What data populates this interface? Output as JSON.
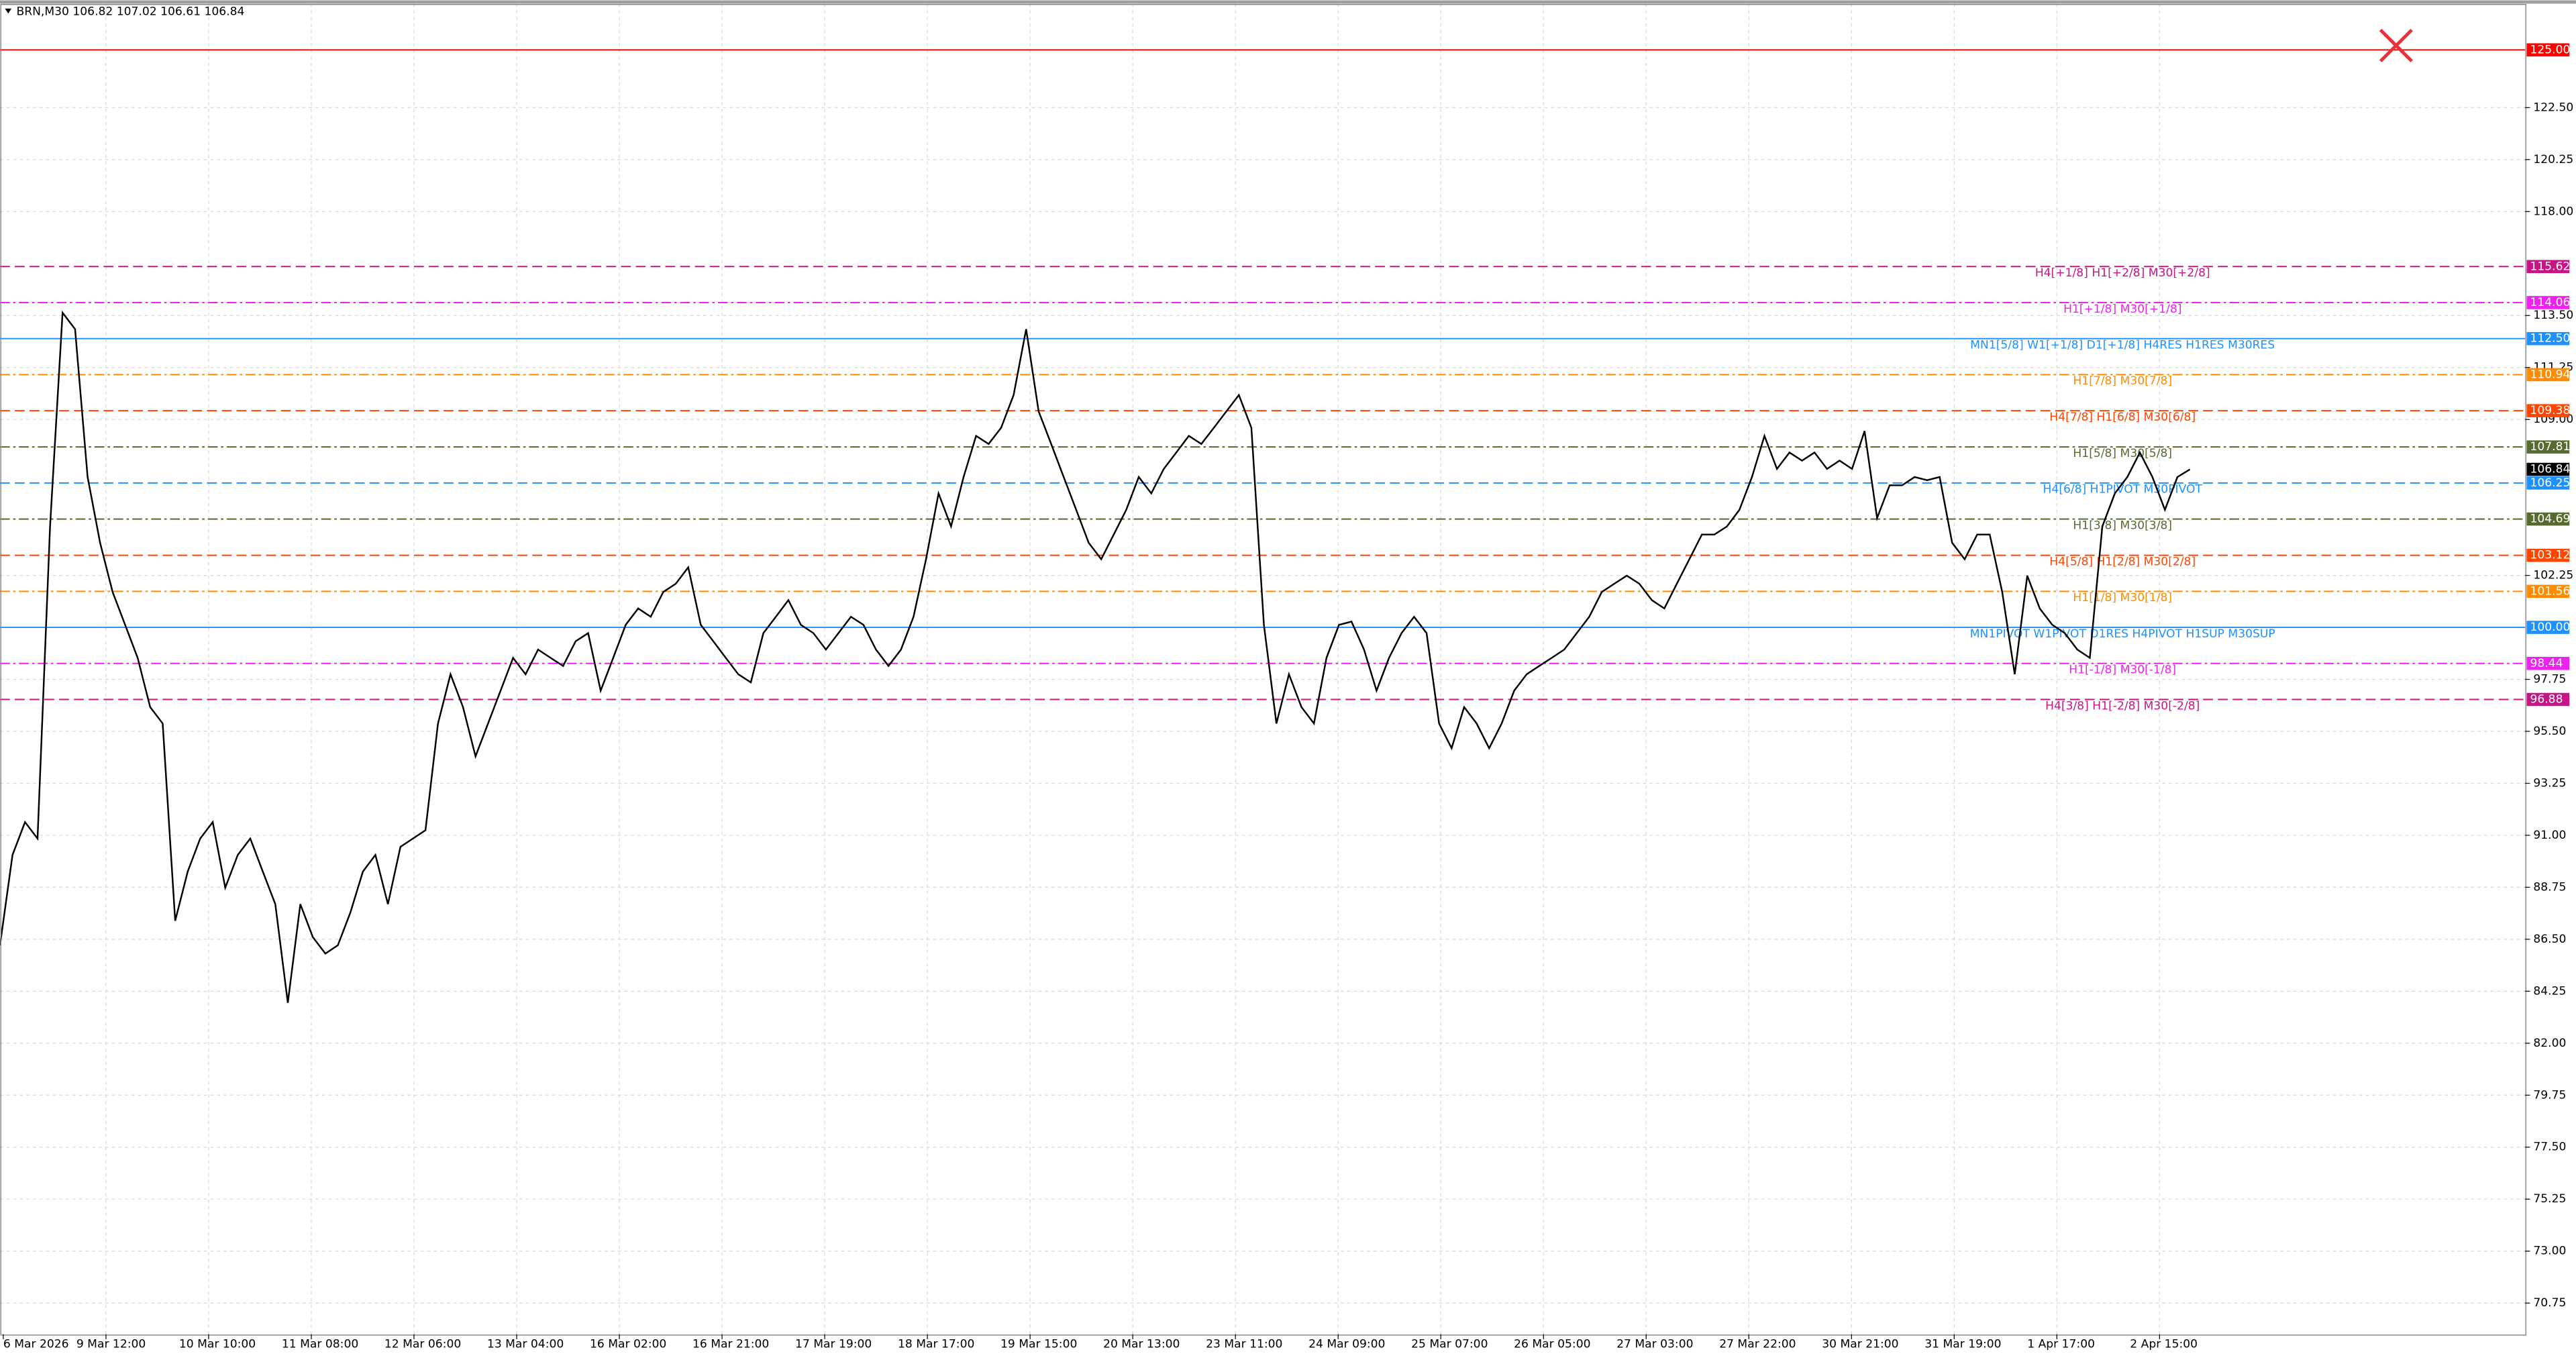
{
  "chart_data": {
    "type": "line",
    "title": "BRN,M30  106.82 107.02 106.61 106.84",
    "ylim": [
      69.4,
      127.0
    ],
    "yticks": [
      {
        "value": 122.5,
        "label": "122.50"
      },
      {
        "value": 120.25,
        "label": "120.25"
      },
      {
        "value": 118,
        "label": "118.00"
      },
      {
        "value": 113.5,
        "label": "113.50"
      },
      {
        "value": 111.25,
        "label": "111.25"
      },
      {
        "value": 109,
        "label": "109.00"
      },
      {
        "value": 102.25,
        "label": "102.25"
      },
      {
        "value": 97.75,
        "label": "97.75"
      },
      {
        "value": 95.5,
        "label": "95.50"
      },
      {
        "value": 93.25,
        "label": "93.25"
      },
      {
        "value": 91,
        "label": "91.00"
      },
      {
        "value": 88.75,
        "label": "88.75"
      },
      {
        "value": 86.5,
        "label": "86.50"
      },
      {
        "value": 84.25,
        "label": "84.25"
      },
      {
        "value": 82,
        "label": "82.00"
      },
      {
        "value": 79.75,
        "label": "79.75"
      },
      {
        "value": 77.5,
        "label": "77.50"
      },
      {
        "value": 75.25,
        "label": "75.25"
      },
      {
        "value": 73,
        "label": "73.00"
      },
      {
        "value": 70.75,
        "label": "70.75"
      }
    ],
    "xticks": [
      "6 Mar 2026",
      "9 Mar 12:00",
      "10 Mar 10:00",
      "11 Mar 08:00",
      "12 Mar 06:00",
      "13 Mar 04:00",
      "16 Mar 02:00",
      "16 Mar 21:00",
      "17 Mar 19:00",
      "18 Mar 17:00",
      "19 Mar 15:00",
      "20 Mar 13:00",
      "23 Mar 11:00",
      "24 Mar 09:00",
      "25 Mar 07:00",
      "26 Mar 05:00",
      "27 Mar 03:00",
      "27 Mar 22:00",
      "30 Mar 21:00",
      "31 Mar 19:00",
      "1 Apr 17:00",
      "2 Apr 15:00"
    ],
    "grid": true,
    "series": [
      {
        "name": "BRN,M30",
        "color": "#000000",
        "values": [
          86.24,
          90.15,
          91.57,
          90.86,
          104.37,
          113.62,
          112.91,
          106.51,
          103.66,
          101.53,
          100.11,
          98.68,
          96.55,
          95.84,
          87.3,
          89.43,
          90.86,
          91.57,
          88.73,
          90.15,
          90.86,
          89.43,
          88.02,
          83.75,
          88.02,
          86.59,
          85.88,
          86.24,
          87.66,
          89.43,
          90.15,
          88.02,
          90.5,
          90.86,
          91.22,
          95.84,
          97.97,
          96.55,
          94.42,
          95.84,
          97.26,
          98.68,
          97.97,
          99.04,
          98.68,
          98.33,
          99.4,
          99.75,
          97.26,
          98.68,
          100.11,
          100.82,
          100.46,
          101.53,
          101.89,
          102.6,
          100.11,
          99.4,
          98.68,
          97.97,
          97.62,
          99.75,
          100.46,
          101.18,
          100.11,
          99.75,
          99.04,
          99.75,
          100.46,
          100.11,
          99.04,
          98.33,
          99.04,
          100.46,
          102.95,
          105.8,
          104.37,
          106.51,
          108.29,
          107.94,
          108.64,
          110.06,
          112.91,
          109.35,
          107.94,
          106.51,
          105.09,
          103.66,
          102.95,
          104.02,
          105.09,
          106.51,
          105.8,
          106.86,
          107.57,
          108.29,
          107.94,
          108.64,
          109.35,
          110.06,
          108.64,
          100.11,
          95.84,
          97.97,
          96.55,
          95.84,
          98.68,
          100.11,
          100.25,
          99.04,
          97.26,
          98.68,
          99.75,
          100.46,
          99.75,
          95.84,
          94.77,
          96.55,
          95.84,
          94.77,
          95.84,
          97.26,
          97.97,
          98.33,
          98.68,
          99.04,
          99.75,
          100.46,
          101.53,
          101.89,
          102.24,
          101.89,
          101.18,
          100.82,
          101.89,
          102.95,
          104.02,
          104.02,
          104.37,
          105.09,
          106.51,
          108.29,
          106.86,
          107.57,
          107.22,
          107.57,
          106.86,
          107.22,
          106.86,
          108.5,
          104.73,
          106.15,
          106.15,
          106.51,
          106.37,
          106.51,
          103.66,
          102.95,
          104.02,
          104.02,
          101.53,
          97.97,
          102.24,
          100.82,
          100.11,
          99.75,
          99.04,
          98.68,
          104.37,
          105.8,
          106.51,
          107.57,
          106.51,
          105.09,
          106.51,
          106.84
        ]
      }
    ],
    "current_price": {
      "value": 106.84,
      "tag": "106.84"
    },
    "levels": [
      {
        "value": 125,
        "tag": "125.00",
        "label": "",
        "color": "#ff0000",
        "style": "solid"
      },
      {
        "value": 115.62,
        "tag": "115.62",
        "label": "H4[+1/8] H1[+2/8] M30[+2/8]",
        "color": "#c71585",
        "style": "dash"
      },
      {
        "value": 114.06,
        "tag": "114.06",
        "label": "H1[+1/8] M30[+1/8]",
        "color": "#ee22ee",
        "style": "dashdot"
      },
      {
        "value": 112.5,
        "tag": "112.50",
        "label": "MN1[5/8] W1[+1/8] D1[+1/8] H4RES H1RES M30RES",
        "color": "#1e90ff",
        "style": "solid"
      },
      {
        "value": 110.94,
        "tag": "110.94",
        "label": "H1[7/8] M30[7/8]",
        "color": "#ff8c00",
        "style": "dashdot"
      },
      {
        "value": 109.38,
        "tag": "109.38",
        "label": "H4[7/8] H1[6/8] M30[6/8]",
        "color": "#ff4500",
        "style": "dash"
      },
      {
        "value": 107.81,
        "tag": "107.81",
        "label": "H1[5/8] M30[5/8]",
        "color": "#556b2f",
        "style": "dashdot"
      },
      {
        "value": 106.25,
        "tag": "106.25",
        "label": "H4[6/8] H1PIVOT M30PIVOT",
        "color": "#1e90ff",
        "style": "dash"
      },
      {
        "value": 104.69,
        "tag": "104.69",
        "label": "H1[3/8] M30[3/8]",
        "color": "#556b2f",
        "style": "dashdot"
      },
      {
        "value": 103.12,
        "tag": "103.12",
        "label": "H4[5/8] H1[2/8] M30[2/8]",
        "color": "#ff4500",
        "style": "dash"
      },
      {
        "value": 101.56,
        "tag": "101.56",
        "label": "H1[1/8] M30[1/8]",
        "color": "#ff8c00",
        "style": "dashdot"
      },
      {
        "value": 100,
        "tag": "100.00",
        "label": "MN1PIVOT W1PIVOT D1RES H4PIVOT H1SUP M30SUP",
        "color": "#1e90ff",
        "style": "solid"
      },
      {
        "value": 98.44,
        "tag": "98.44",
        "label": "H1[-1/8] M30[-1/8]",
        "color": "#ee22ee",
        "style": "dashdot"
      },
      {
        "value": 96.88,
        "tag": "96.88",
        "label": "H4[3/8] H1[-2/8] M30[-2/8]",
        "color": "#c71585",
        "style": "dash"
      }
    ]
  }
}
